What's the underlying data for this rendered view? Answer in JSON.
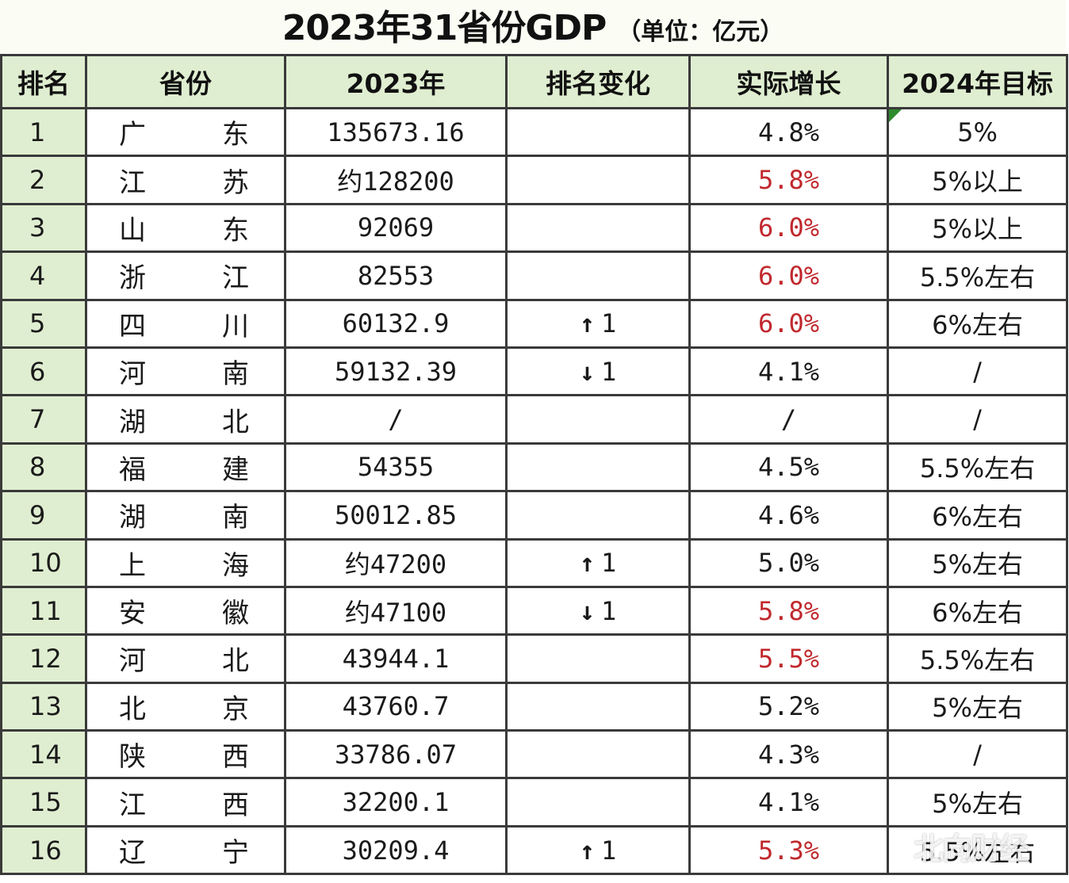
{
  "title": {
    "main": "2023年31省份GDP",
    "unit": "（单位：亿元）"
  },
  "headers": [
    "排名",
    "省份",
    "2023年",
    "排名变化",
    "实际增长",
    "2024年目标"
  ],
  "colors": {
    "header_bg": "#dfeed0",
    "highlight_growth": "#c0282d",
    "border": "#3a3a3a"
  },
  "rows": [
    {
      "rank": "1",
      "prov_a": "广",
      "prov_b": "东",
      "gdp": "135673.16",
      "change_icon": "",
      "change": "",
      "growth": "4.8%",
      "growth_highlight": false,
      "target": "5%"
    },
    {
      "rank": "2",
      "prov_a": "江",
      "prov_b": "苏",
      "gdp": "约128200",
      "change_icon": "",
      "change": "",
      "growth": "5.8%",
      "growth_highlight": true,
      "target": "5%以上"
    },
    {
      "rank": "3",
      "prov_a": "山",
      "prov_b": "东",
      "gdp": "92069",
      "change_icon": "",
      "change": "",
      "growth": "6.0%",
      "growth_highlight": true,
      "target": "5%以上"
    },
    {
      "rank": "4",
      "prov_a": "浙",
      "prov_b": "江",
      "gdp": "82553",
      "change_icon": "",
      "change": "",
      "growth": "6.0%",
      "growth_highlight": true,
      "target": "5.5%左右"
    },
    {
      "rank": "5",
      "prov_a": "四",
      "prov_b": "川",
      "gdp": "60132.9",
      "change_icon": "↑",
      "change": "1",
      "growth": "6.0%",
      "growth_highlight": true,
      "target": "6%左右"
    },
    {
      "rank": "6",
      "prov_a": "河",
      "prov_b": "南",
      "gdp": "59132.39",
      "change_icon": "↓",
      "change": "1",
      "growth": "4.1%",
      "growth_highlight": false,
      "target": "/"
    },
    {
      "rank": "7",
      "prov_a": "湖",
      "prov_b": "北",
      "gdp": "/",
      "change_icon": "",
      "change": "",
      "growth": "/",
      "growth_highlight": false,
      "target": "/"
    },
    {
      "rank": "8",
      "prov_a": "福",
      "prov_b": "建",
      "gdp": "54355",
      "change_icon": "",
      "change": "",
      "growth": "4.5%",
      "growth_highlight": false,
      "target": "5.5%左右"
    },
    {
      "rank": "9",
      "prov_a": "湖",
      "prov_b": "南",
      "gdp": "50012.85",
      "change_icon": "",
      "change": "",
      "growth": "4.6%",
      "growth_highlight": false,
      "target": "6%左右"
    },
    {
      "rank": "10",
      "prov_a": "上",
      "prov_b": "海",
      "gdp": "约47200",
      "change_icon": "↑",
      "change": "1",
      "growth": "5.0%",
      "growth_highlight": false,
      "target": "5%左右"
    },
    {
      "rank": "11",
      "prov_a": "安",
      "prov_b": "徽",
      "gdp": "约47100",
      "change_icon": "↓",
      "change": "1",
      "growth": "5.8%",
      "growth_highlight": true,
      "target": "6%左右"
    },
    {
      "rank": "12",
      "prov_a": "河",
      "prov_b": "北",
      "gdp": "43944.1",
      "change_icon": "",
      "change": "",
      "growth": "5.5%",
      "growth_highlight": true,
      "target": "5.5%左右"
    },
    {
      "rank": "13",
      "prov_a": "北",
      "prov_b": "京",
      "gdp": "43760.7",
      "change_icon": "",
      "change": "",
      "growth": "5.2%",
      "growth_highlight": false,
      "target": "5%左右"
    },
    {
      "rank": "14",
      "prov_a": "陕",
      "prov_b": "西",
      "gdp": "33786.07",
      "change_icon": "",
      "change": "",
      "growth": "4.3%",
      "growth_highlight": false,
      "target": "/"
    },
    {
      "rank": "15",
      "prov_a": "江",
      "prov_b": "西",
      "gdp": "32200.1",
      "change_icon": "",
      "change": "",
      "growth": "4.1%",
      "growth_highlight": false,
      "target": "5%左右"
    },
    {
      "rank": "16",
      "prov_a": "辽",
      "prov_b": "宁",
      "gdp": "30209.4",
      "change_icon": "↑",
      "change": "1",
      "growth": "5.3%",
      "growth_highlight": true,
      "target": "5.5%左右"
    }
  ],
  "watermark": "北向财经"
}
